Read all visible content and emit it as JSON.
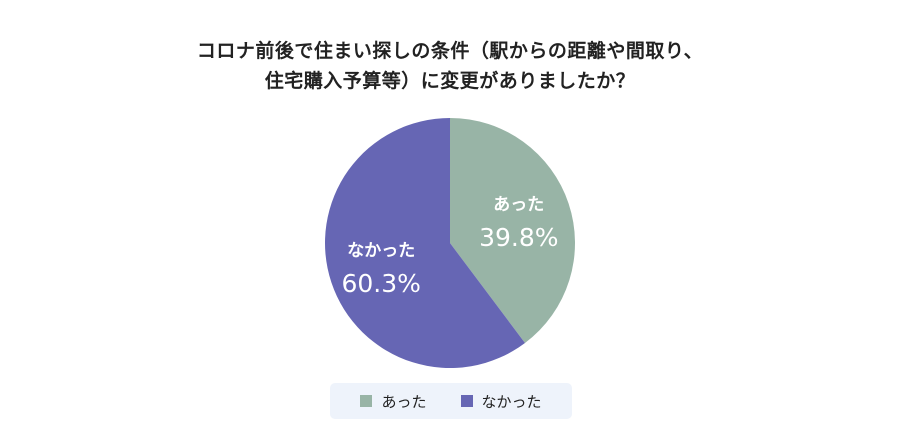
{
  "chart_data": {
    "type": "pie",
    "title": [
      "コロナ前後で住まい探しの条件（駅からの距離や間取り、",
      "住宅購入予算等）に変更がありましたか？"
    ],
    "series": [
      {
        "name": "あった",
        "value": 39.8,
        "label": "39.8%",
        "color": "#98b4a6"
      },
      {
        "name": "なかった",
        "value": 60.3,
        "label": "60.3%",
        "color": "#6666b4"
      }
    ],
    "legend": [
      "あった",
      "なかった"
    ],
    "legend_position": "bottom"
  }
}
